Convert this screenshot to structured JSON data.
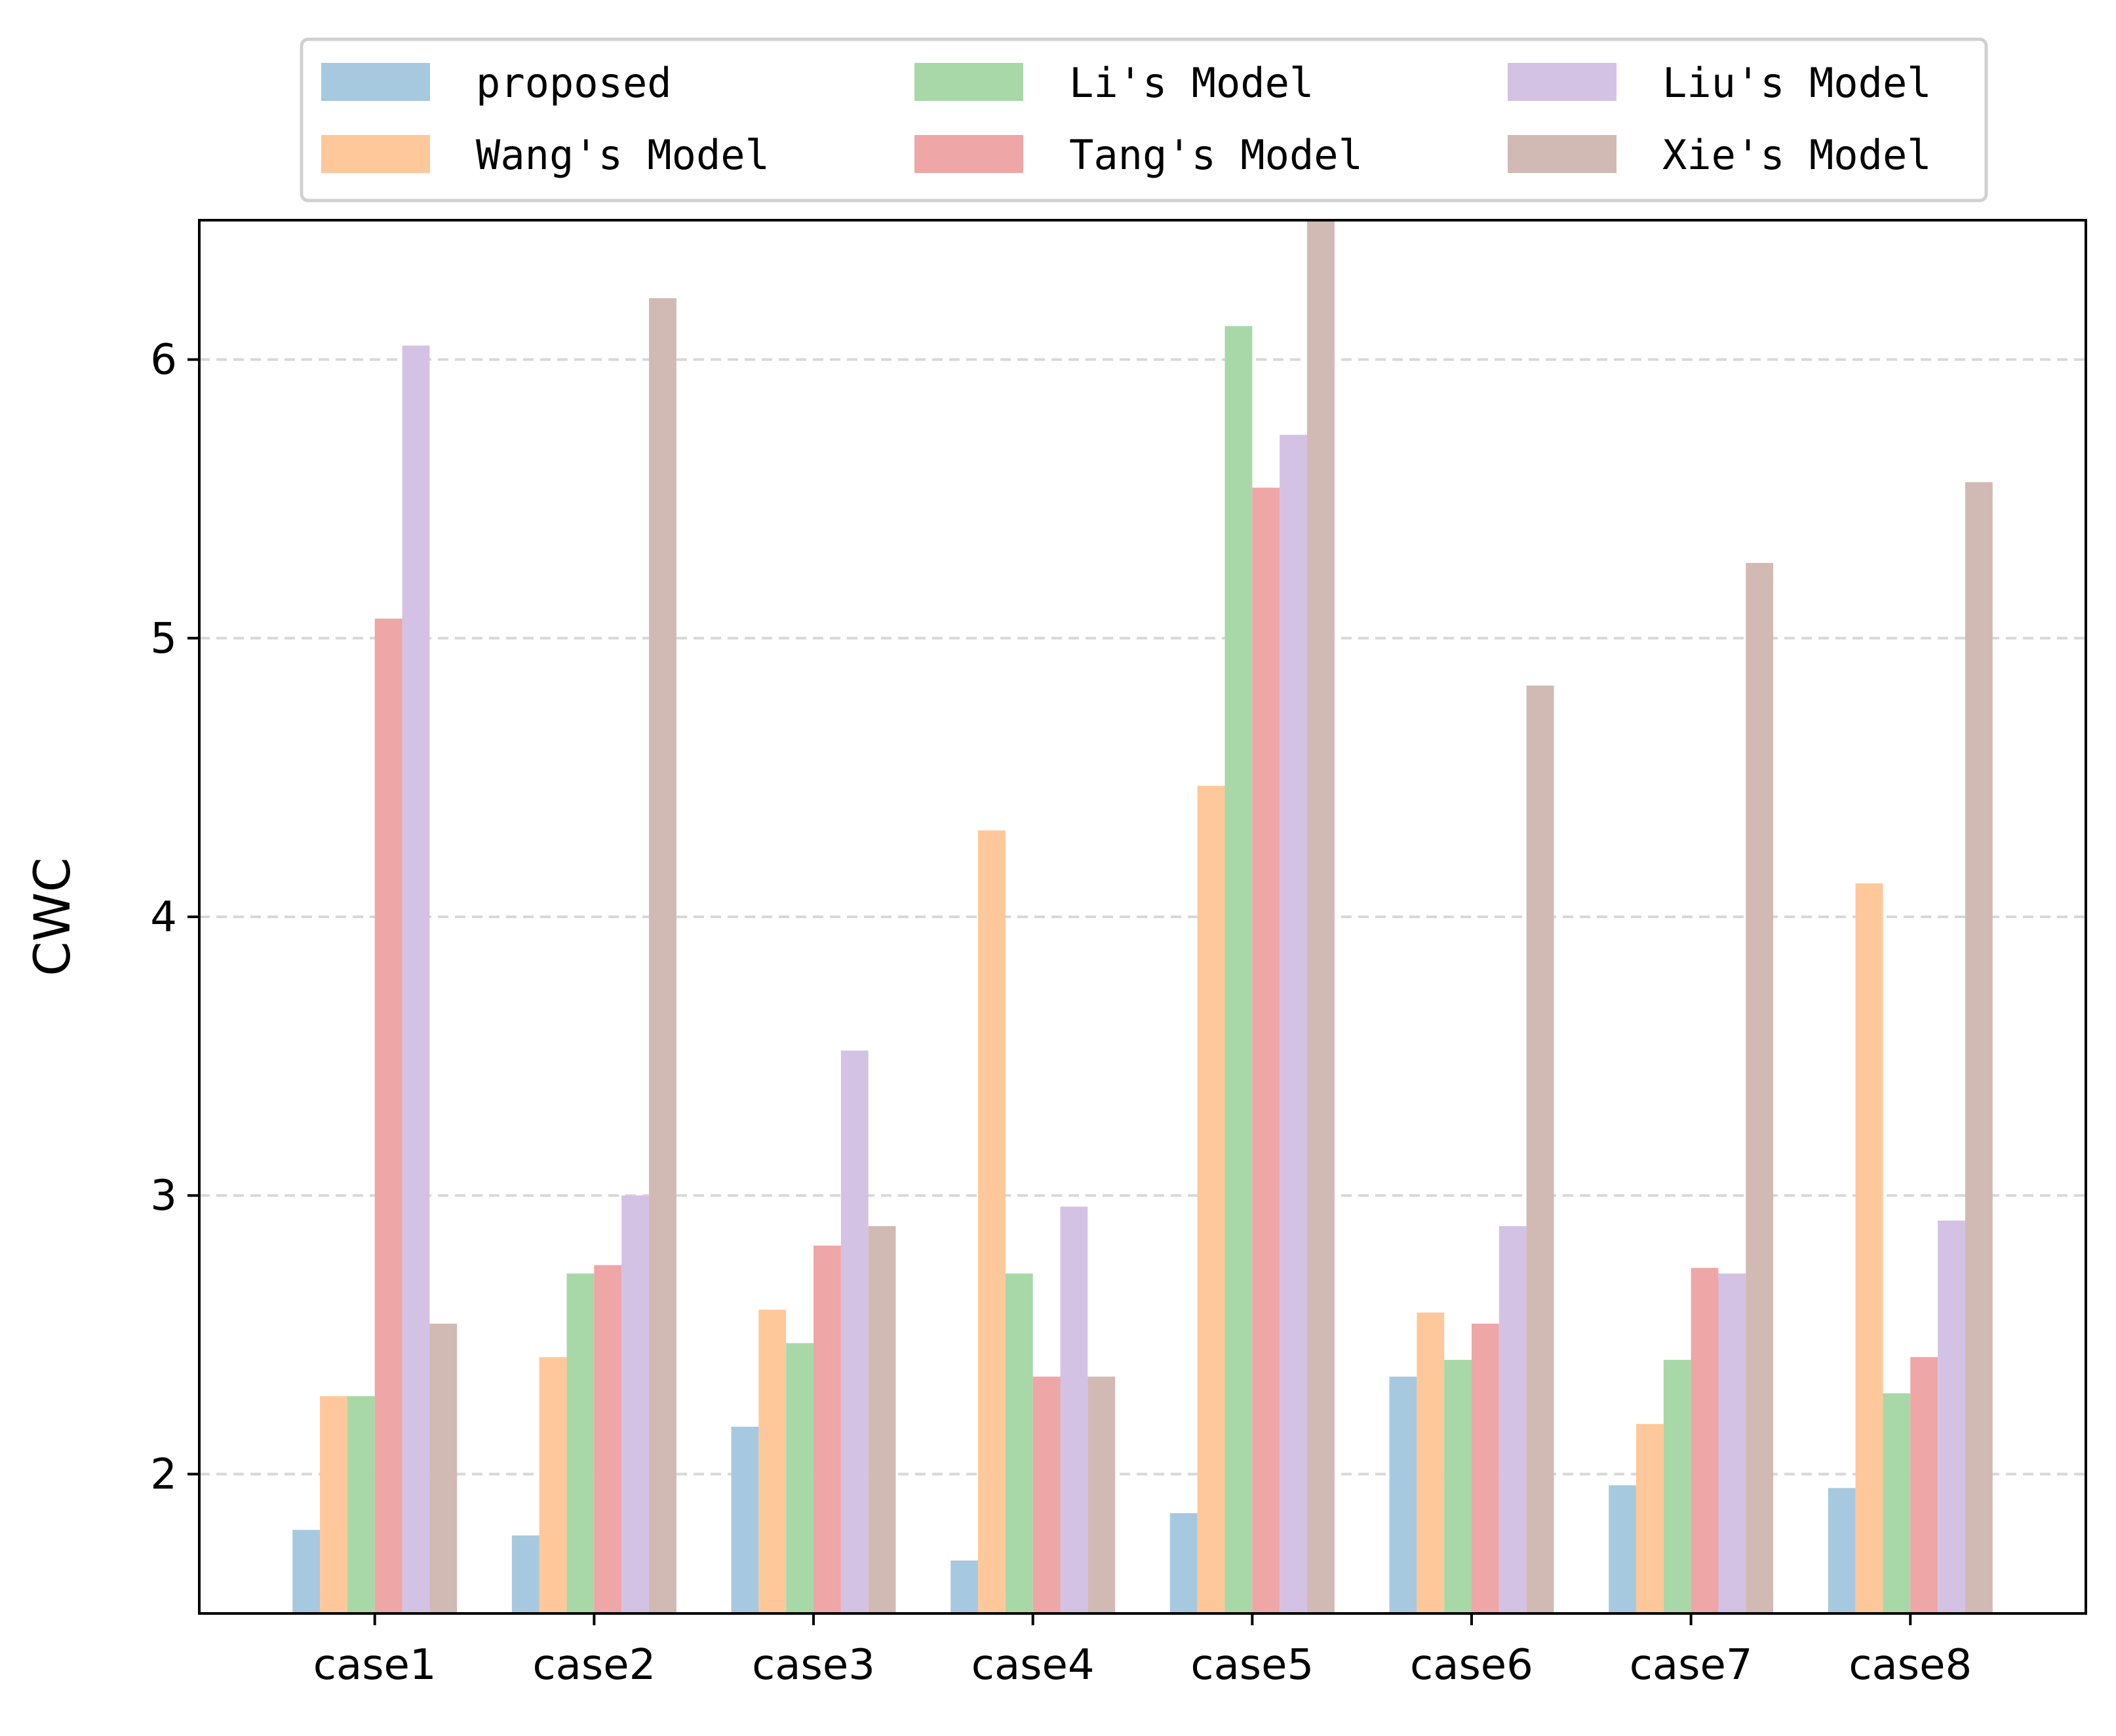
{
  "chart_data": {
    "type": "bar",
    "title": "",
    "xlabel": "",
    "ylabel": "CWC",
    "categories": [
      "case1",
      "case2",
      "case3",
      "case4",
      "case5",
      "case6",
      "case7",
      "case8"
    ],
    "ylim": [
      1.5,
      6.5
    ],
    "yticks": [
      "2",
      "3",
      "4",
      "5",
      "6"
    ],
    "grid": "horizontal dashed",
    "legend_position": "top",
    "legend_columns": 3,
    "series": [
      {
        "name": "proposed",
        "color": "#a6c9e0",
        "values": [
          1.8,
          1.78,
          2.17,
          1.69,
          1.86,
          2.35,
          1.96,
          1.95
        ]
      },
      {
        "name": "Wang's Model",
        "color": "#fec89a",
        "values": [
          2.28,
          2.42,
          2.59,
          4.31,
          4.47,
          2.58,
          2.18,
          4.12
        ]
      },
      {
        "name": "Li's Model",
        "color": "#a8d8a8",
        "values": [
          2.28,
          2.72,
          2.47,
          2.72,
          6.12,
          2.41,
          2.41,
          2.29
        ]
      },
      {
        "name": "Tang's Model",
        "color": "#eea6a6",
        "values": [
          5.07,
          2.75,
          2.82,
          2.35,
          5.54,
          2.54,
          2.74,
          2.42
        ]
      },
      {
        "name": "Liu's Model",
        "color": "#d4c2e4",
        "values": [
          6.05,
          3.0,
          3.52,
          2.96,
          5.73,
          2.89,
          2.72,
          2.91
        ]
      },
      {
        "name": "Xie's Model",
        "color": "#d1bab4",
        "values": [
          2.54,
          6.22,
          2.89,
          2.35,
          6.5,
          4.83,
          5.27,
          5.56
        ]
      }
    ]
  }
}
